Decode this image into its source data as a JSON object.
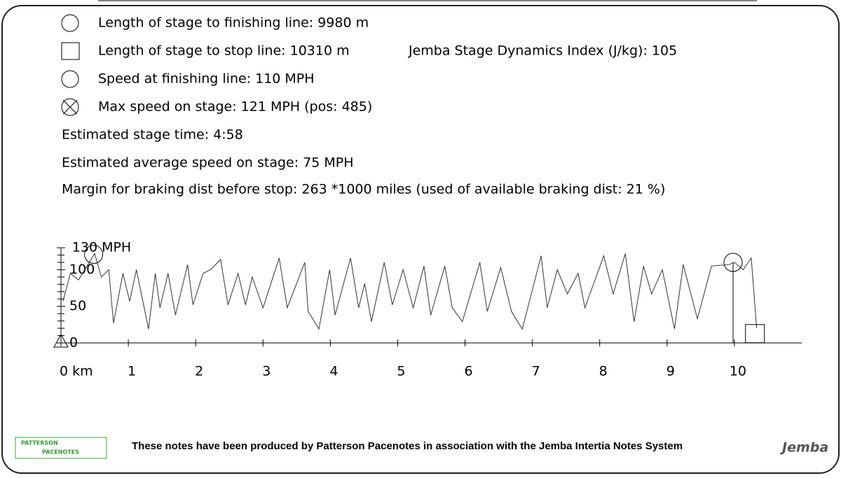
{
  "info": {
    "lines": [
      "Length of stage to finishing line: 9980 m",
      "Length of stage to stop line: 10310 m",
      "Speed at finishing line: 110 MPH",
      "Max speed on stage: 121 MPH (pos: 485)",
      "Estimated stage time: 4:58",
      "Estimated average speed on stage: 75 MPH",
      "Margin for braking dist before stop: 263 *1000 miles (used of available braking dist: 21 %)"
    ],
    "index": "Jemba Stage Dynamics Index (J/kg): 105"
  },
  "chart_data": {
    "type": "line",
    "series": [
      {
        "color": "#333333",
        "x": [
          0.03,
          0.14,
          0.26,
          0.5,
          0.6,
          0.71,
          0.78,
          0.92,
          1.02,
          1.12,
          1.3,
          1.4,
          1.47,
          1.59,
          1.7,
          1.88,
          1.96,
          2.11,
          2.22,
          2.37,
          2.48,
          2.63,
          2.74,
          2.84,
          3.0,
          3.24,
          3.36,
          3.62,
          3.67,
          3.83,
          3.99,
          4.07,
          4.3,
          4.42,
          4.51,
          4.61,
          4.8,
          4.92,
          5.08,
          5.23,
          5.39,
          5.49,
          5.7,
          5.81,
          5.96,
          6.22,
          6.33,
          6.53,
          6.69,
          6.85,
          7.13,
          7.22,
          7.37,
          7.52,
          7.68,
          7.78,
          8.06,
          8.2,
          8.38,
          8.51,
          8.65,
          8.77,
          8.93,
          9.11,
          9.24,
          9.45,
          9.66,
          9.92,
          10.0,
          10.13,
          10.25,
          10.33
        ],
        "values": [
          57,
          95,
          86,
          122,
          90,
          100,
          27,
          95,
          57,
          100,
          19,
          95,
          48,
          95,
          38,
          107,
          52,
          95,
          100,
          114,
          52,
          95,
          52,
          90,
          48,
          116,
          48,
          110,
          43,
          19,
          100,
          38,
          116,
          48,
          81,
          29,
          110,
          52,
          100,
          48,
          105,
          38,
          105,
          48,
          29,
          110,
          43,
          103,
          43,
          19,
          119,
          48,
          100,
          67,
          95,
          48,
          119,
          67,
          122,
          29,
          105,
          67,
          100,
          19,
          107,
          33,
          105,
          107,
          110,
          100,
          116,
          20
        ]
      }
    ],
    "markers": [
      {
        "x": 0,
        "y": 0,
        "shape": "triangle"
      },
      {
        "x": 0.485,
        "y": 121,
        "shape": "circle"
      },
      {
        "x": 9.98,
        "y": 110,
        "shape": "circle"
      },
      {
        "x": 10.31,
        "y": 6,
        "shape": "square"
      }
    ],
    "xlim": [
      0,
      11
    ],
    "xticks": [
      {
        "value": 0,
        "label": "0 km"
      },
      1,
      2,
      3,
      4,
      5,
      6,
      7,
      8,
      9,
      10
    ],
    "ylim": [
      0,
      130
    ],
    "yticks": [
      0,
      50,
      100,
      {
        "value": 130,
        "label": "130 MPH"
      }
    ],
    "minor_yticks": [
      10,
      20,
      30,
      40,
      60,
      70,
      80,
      90,
      110,
      120
    ]
  },
  "footer": {
    "text": "These notes have been produced by Patterson Pacenotes in association with the Jemba Intertia Notes System",
    "logo_top": "PATTERSON",
    "logo_bottom": "PACENOTES",
    "brand": "Jemba"
  }
}
